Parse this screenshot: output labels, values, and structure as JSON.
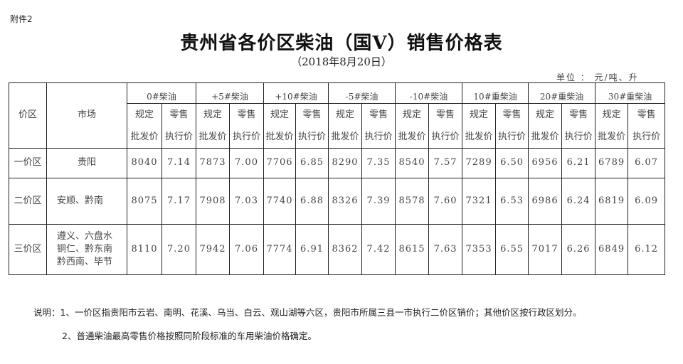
{
  "attachment": "附件2",
  "title": "贵州省各价区柴油（国Ⅴ）销售价格表",
  "date": "（2018年8月20日）",
  "unit": "单位 ： 元/吨、升",
  "table": {
    "col_zone": "价区",
    "col_market": "市场",
    "sub_wholesale": [
      "规定",
      "批发价"
    ],
    "sub_retail": [
      "零售",
      "执行价"
    ],
    "products": [
      "0#柴油",
      "+5#柴油",
      "+10#柴油",
      "-5#柴油",
      "-10#柴油",
      "10#重柴油",
      "20#重柴油",
      "30#重柴油"
    ],
    "rows": [
      {
        "zone": "一价区",
        "market": [
          "贵阳"
        ],
        "values": [
          "8040",
          "7.14",
          "7873",
          "7.00",
          "7706",
          "6.85",
          "8290",
          "7.35",
          "8540",
          "7.57",
          "7289",
          "6.50",
          "6956",
          "6.21",
          "6789",
          "6.07"
        ]
      },
      {
        "zone": "二价区",
        "market": [
          "安顺、黔南"
        ],
        "values": [
          "8075",
          "7.17",
          "7908",
          "7.03",
          "7740",
          "6.88",
          "8326",
          "7.39",
          "8578",
          "7.60",
          "7321",
          "6.53",
          "6986",
          "6.24",
          "6819",
          "6.09"
        ]
      },
      {
        "zone": "三价区",
        "market": [
          "遵义、六盘水",
          "铜仁、黔东南",
          "黔西南、毕节"
        ],
        "values": [
          "8110",
          "7.20",
          "7942",
          "7.06",
          "7774",
          "6.91",
          "8362",
          "7.42",
          "8615",
          "7.63",
          "7353",
          "6.55",
          "7017",
          "6.26",
          "6849",
          "6.12"
        ]
      }
    ]
  },
  "notes": [
    "说明：1、一价区指贵阳市云岩、南明、花溪、乌当、白云、观山湖等六区，贵阳市所属三县一市执行二价区销价；其他价区按行政区划分。",
    "2、普通柴油最高零售价格按照同阶段标准的车用柴油价格确定。"
  ]
}
